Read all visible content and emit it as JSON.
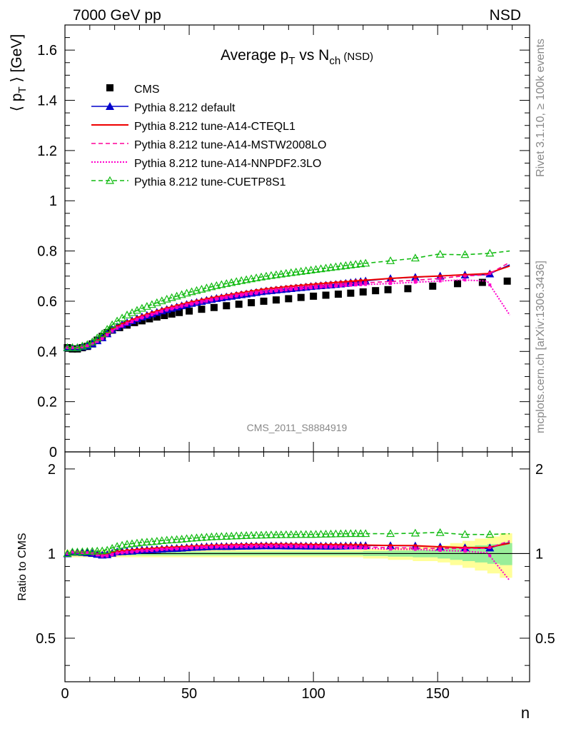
{
  "header": {
    "left": "7000 GeV pp",
    "right": "NSD"
  },
  "side": {
    "rivet": "Rivet 3.1.10, ≥ 100k events",
    "mcplots": "mcplots.cern.ch [arXiv:1306.3436]"
  },
  "chart_data": {
    "type": "line",
    "title": {
      "main": "Average p",
      "sub1": "T",
      "mid": " vs N",
      "sub2": "ch",
      "suffix": " (NSD)"
    },
    "ylabel": {
      "main": "⟨ p",
      "sub": "T",
      "suffix": " ⟩ [GeV]"
    },
    "ratio_ylabel": "Ratio to CMS",
    "xlabel": "n",
    "watermark": "CMS_2011_S8884919",
    "xlim": [
      0,
      187
    ],
    "ylim": [
      0,
      1.7
    ],
    "ratio_ylim": [
      0.35,
      2.3
    ],
    "grid": false,
    "legend_position": "top-left",
    "x_ticks": [
      "0",
      "50",
      "100",
      "150"
    ],
    "y_ticks": [
      "0",
      "0.2",
      "0.4",
      "0.6",
      "0.8",
      "1",
      "1.2",
      "1.4",
      "1.6"
    ],
    "ratio_ticks": [
      "0.5",
      "1",
      "2"
    ],
    "legend": [
      {
        "name": "CMS",
        "color": "#000000",
        "style": "square"
      },
      {
        "name": "Pythia 8.212 default",
        "color": "#0000cc",
        "style": "solid-triangle"
      },
      {
        "name": "Pythia 8.212 tune-A14-CTEQL1",
        "color": "#ee0000",
        "style": "solid"
      },
      {
        "name": "Pythia 8.212 tune-A14-MSTW2008LO",
        "color": "#ff0099",
        "style": "dashed"
      },
      {
        "name": "Pythia 8.212 tune-A14-NNPDF2.3LO",
        "color": "#ff00cc",
        "style": "dotted"
      },
      {
        "name": "Pythia 8.212 tune-CUETP8S1",
        "color": "#11bb11",
        "style": "dashed-open-triangle"
      }
    ],
    "series": [
      {
        "name": "CMS",
        "x": [
          1,
          3,
          5,
          7,
          9,
          11,
          13,
          15,
          17,
          19,
          22,
          25,
          28,
          31,
          34,
          37,
          40,
          43,
          46,
          50,
          55,
          60,
          65,
          70,
          75,
          80,
          85,
          90,
          95,
          100,
          105,
          110,
          115,
          120,
          125,
          130,
          138,
          148,
          158,
          168,
          178
        ],
        "y": [
          0.415,
          0.41,
          0.41,
          0.415,
          0.42,
          0.43,
          0.445,
          0.46,
          0.475,
          0.485,
          0.495,
          0.505,
          0.515,
          0.522,
          0.53,
          0.537,
          0.543,
          0.549,
          0.555,
          0.561,
          0.568,
          0.575,
          0.582,
          0.588,
          0.594,
          0.6,
          0.605,
          0.61,
          0.615,
          0.62,
          0.624,
          0.628,
          0.632,
          0.637,
          0.642,
          0.646,
          0.65,
          0.66,
          0.67,
          0.675,
          0.68
        ]
      },
      {
        "name": "Pythia 8.212 default",
        "x": [
          1,
          5,
          10,
          15,
          20,
          25,
          30,
          40,
          50,
          60,
          70,
          80,
          90,
          100,
          110,
          120,
          130,
          140,
          150,
          160,
          170,
          179
        ],
        "y": [
          0.415,
          0.415,
          0.425,
          0.455,
          0.495,
          0.515,
          0.535,
          0.565,
          0.59,
          0.61,
          0.625,
          0.64,
          0.65,
          0.66,
          0.668,
          0.68,
          0.69,
          0.695,
          0.7,
          0.705,
          0.705,
          0.745
        ]
      },
      {
        "name": "Pythia 8.212 tune-A14-CTEQL1",
        "x": [
          1,
          5,
          10,
          15,
          20,
          25,
          30,
          40,
          50,
          60,
          70,
          80,
          90,
          100,
          110,
          120,
          130,
          140,
          150,
          160,
          170,
          179
        ],
        "y": [
          0.415,
          0.415,
          0.425,
          0.455,
          0.495,
          0.518,
          0.538,
          0.57,
          0.595,
          0.615,
          0.632,
          0.647,
          0.658,
          0.667,
          0.675,
          0.683,
          0.69,
          0.696,
          0.7,
          0.705,
          0.71,
          0.74
        ]
      },
      {
        "name": "Pythia 8.212 tune-A14-MSTW2008LO",
        "x": [
          1,
          5,
          10,
          15,
          20,
          25,
          30,
          40,
          50,
          60,
          70,
          80,
          90,
          100,
          110,
          120,
          130,
          140,
          150,
          160,
          170,
          179
        ],
        "y": [
          0.415,
          0.415,
          0.425,
          0.452,
          0.49,
          0.513,
          0.533,
          0.565,
          0.59,
          0.61,
          0.627,
          0.641,
          0.652,
          0.66,
          0.667,
          0.673,
          0.678,
          0.683,
          0.69,
          0.7,
          0.705,
          0.755
        ]
      },
      {
        "name": "Pythia 8.212 tune-A14-NNPDF2.3LO",
        "x": [
          1,
          5,
          10,
          15,
          20,
          25,
          30,
          40,
          50,
          60,
          70,
          80,
          90,
          100,
          110,
          120,
          130,
          140,
          150,
          160,
          170,
          179
        ],
        "y": [
          0.415,
          0.415,
          0.424,
          0.45,
          0.488,
          0.51,
          0.53,
          0.562,
          0.586,
          0.606,
          0.622,
          0.636,
          0.646,
          0.654,
          0.661,
          0.666,
          0.67,
          0.675,
          0.68,
          0.685,
          0.68,
          0.545
        ]
      },
      {
        "name": "Pythia 8.212 tune-CUETP8S1",
        "x": [
          1,
          5,
          10,
          15,
          20,
          25,
          30,
          40,
          50,
          60,
          70,
          80,
          90,
          100,
          110,
          120,
          130,
          140,
          150,
          160,
          170,
          179
        ],
        "y": [
          0.415,
          0.415,
          0.43,
          0.47,
          0.515,
          0.545,
          0.568,
          0.605,
          0.635,
          0.66,
          0.68,
          0.698,
          0.712,
          0.725,
          0.738,
          0.75,
          0.76,
          0.77,
          0.787,
          0.785,
          0.79,
          0.8
        ]
      }
    ],
    "ratio_band": {
      "x": [
        0,
        100,
        120,
        130,
        140,
        150,
        155,
        160,
        165,
        170,
        175,
        180
      ],
      "inner": [
        0.015,
        0.015,
        0.02,
        0.025,
        0.03,
        0.04,
        0.05,
        0.06,
        0.07,
        0.08,
        0.09,
        0.1
      ],
      "outer": [
        0.03,
        0.03,
        0.04,
        0.05,
        0.06,
        0.07,
        0.09,
        0.11,
        0.13,
        0.15,
        0.18,
        0.2
      ]
    }
  }
}
